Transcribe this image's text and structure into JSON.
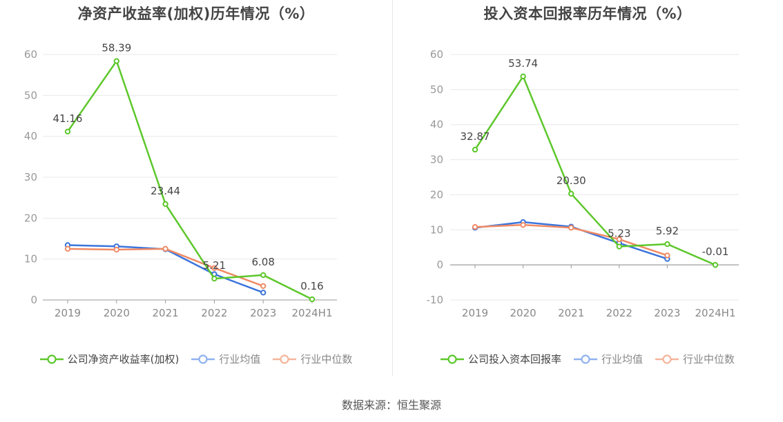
{
  "source_text": "数据来源：恒生聚源",
  "colors": {
    "main": "#5cc72a",
    "avg": "#3b74db",
    "median": "#f08a64",
    "legend_avg": "#8fb2ef",
    "legend_median": "#f5b49a"
  },
  "chart_data": [
    {
      "type": "line",
      "title": "净资产收益率(加权)历年情况（%）",
      "categories": [
        "2019",
        "2020",
        "2021",
        "2022",
        "2023",
        "2024H1"
      ],
      "ylim": [
        0,
        60
      ],
      "yticks": [
        0,
        10,
        20,
        30,
        40,
        50,
        60
      ],
      "grid": true,
      "legend_position": "bottom",
      "series": [
        {
          "name": "公司净资产收益率(加权)",
          "color": "#5cc72a",
          "legend_color": "#5cc72a",
          "values": [
            41.16,
            58.39,
            23.44,
            5.21,
            6.08,
            0.16
          ],
          "labels": [
            "41.16",
            "58.39",
            "23.44",
            "5.21",
            "6.08",
            "0.16"
          ]
        },
        {
          "name": "行业均值",
          "color": "#3b74db",
          "legend_color": "#8fb2ef",
          "values": [
            13.4,
            13.1,
            12.4,
            6.3,
            1.8,
            null
          ]
        },
        {
          "name": "行业中位数",
          "color": "#f08a64",
          "legend_color": "#f5b49a",
          "values": [
            12.5,
            12.3,
            12.5,
            7.8,
            3.4,
            null
          ]
        }
      ]
    },
    {
      "type": "line",
      "title": "投入资本回报率历年情况（%）",
      "categories": [
        "2019",
        "2020",
        "2021",
        "2022",
        "2023",
        "2024H1"
      ],
      "ylim": [
        -10,
        60
      ],
      "yticks": [
        -10,
        0,
        10,
        20,
        30,
        40,
        50,
        60
      ],
      "grid": true,
      "legend_position": "bottom",
      "series": [
        {
          "name": "公司投入资本回报率",
          "color": "#5cc72a",
          "legend_color": "#5cc72a",
          "values": [
            32.87,
            53.74,
            20.3,
            5.23,
            5.92,
            -0.01
          ],
          "labels": [
            "32.87",
            "53.74",
            "20.30",
            "5.23",
            "5.92",
            "-0.01"
          ]
        },
        {
          "name": "行业均值",
          "color": "#3b74db",
          "legend_color": "#8fb2ef",
          "values": [
            10.6,
            12.2,
            10.9,
            6.2,
            1.7,
            null
          ]
        },
        {
          "name": "行业中位数",
          "color": "#f08a64",
          "legend_color": "#f5b49a",
          "values": [
            10.8,
            11.4,
            10.6,
            7.3,
            2.7,
            null
          ]
        }
      ]
    }
  ]
}
